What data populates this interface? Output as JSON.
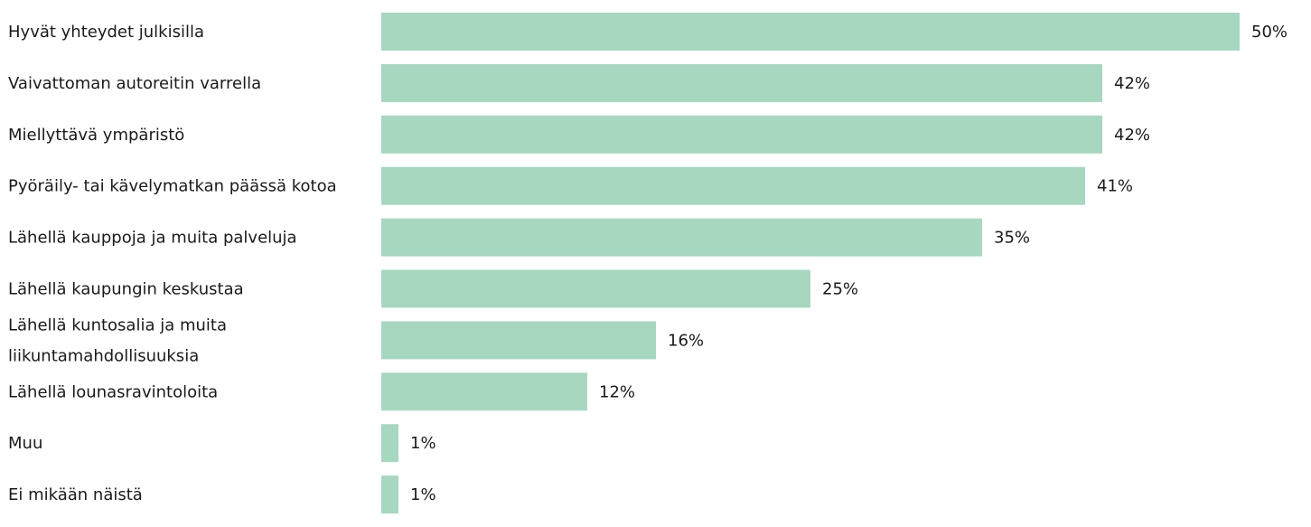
{
  "chart_data": {
    "type": "bar",
    "orientation": "horizontal",
    "title": "",
    "xlabel": "",
    "ylabel": "",
    "xlim": [
      0,
      50
    ],
    "grid": false,
    "legend": "none",
    "bar_color": "#a6d8c0",
    "text_color": "#1a1a1a",
    "categories": [
      "Hyvät yhteydet julkisilla",
      "Vaivattoman autoreitin varrella",
      "Miellyttävä ympäristö",
      "Pyöräily- tai kävelymatkan päässä kotoa",
      "Lähellä kauppoja ja muita palveluja",
      "Lähellä kaupungin keskustaa",
      "Lähellä kuntosalia ja muita liikuntamahdollisuuksia",
      "Lähellä lounasravintoloita",
      "Muu",
      "Ei mikään näistä"
    ],
    "category_lines": [
      [
        "Hyvät yhteydet julkisilla"
      ],
      [
        "Vaivattoman autoreitin varrella"
      ],
      [
        "Miellyttävä ympäristö"
      ],
      [
        "Pyöräily- tai kävelymatkan päässä kotoa"
      ],
      [
        "Lähellä kauppoja ja muita palveluja"
      ],
      [
        "Lähellä kaupungin keskustaa"
      ],
      [
        "Lähellä kuntosalia ja muita",
        "liikuntamahdollisuuksia"
      ],
      [
        "Lähellä lounasravintoloita"
      ],
      [
        "Muu"
      ],
      [
        "Ei mikään näistä"
      ]
    ],
    "values": [
      50,
      42,
      42,
      41,
      35,
      25,
      16,
      12,
      1,
      1
    ],
    "value_labels": [
      "50%",
      "42%",
      "42%",
      "41%",
      "35%",
      "25%",
      "16%",
      "12%",
      "1%",
      "1%"
    ]
  }
}
